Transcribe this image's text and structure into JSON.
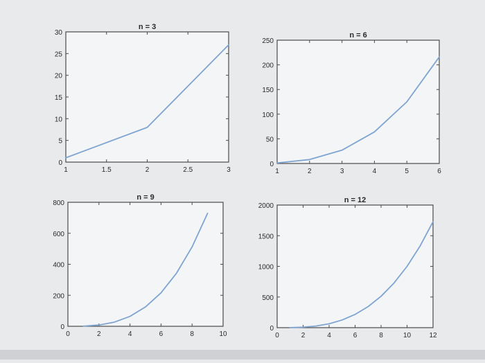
{
  "chart_data": [
    {
      "type": "line",
      "title": "n = 3",
      "xlabel": "",
      "ylabel": "",
      "xlim": [
        1,
        3
      ],
      "ylim": [
        0,
        30
      ],
      "xticks": [
        "1",
        "1.5",
        "2",
        "2.5",
        "3"
      ],
      "yticks": [
        "0",
        "5",
        "10",
        "15",
        "20",
        "25",
        "30"
      ],
      "grid": false,
      "series": [
        {
          "x": [
            1,
            2,
            3
          ],
          "y": [
            1,
            8,
            27
          ]
        }
      ]
    },
    {
      "type": "line",
      "title": "n = 6",
      "xlabel": "",
      "ylabel": "",
      "xlim": [
        1,
        6
      ],
      "ylim": [
        0,
        250
      ],
      "xticks": [
        "1",
        "2",
        "3",
        "4",
        "5",
        "6"
      ],
      "yticks": [
        "0",
        "50",
        "100",
        "150",
        "200",
        "250"
      ],
      "grid": false,
      "series": [
        {
          "x": [
            1,
            2,
            3,
            4,
            5,
            6
          ],
          "y": [
            1,
            8,
            27,
            64,
            125,
            216
          ]
        }
      ]
    },
    {
      "type": "line",
      "title": "n = 9",
      "xlabel": "",
      "ylabel": "",
      "xlim": [
        0,
        10
      ],
      "ylim": [
        0,
        800
      ],
      "xticks": [
        "0",
        "2",
        "4",
        "6",
        "8",
        "10"
      ],
      "yticks": [
        "0",
        "200",
        "400",
        "600",
        "800"
      ],
      "grid": false,
      "series": [
        {
          "x": [
            1,
            2,
            3,
            4,
            5,
            6,
            7,
            8,
            9
          ],
          "y": [
            1,
            8,
            27,
            64,
            125,
            216,
            343,
            512,
            729
          ]
        }
      ]
    },
    {
      "type": "line",
      "title": "n = 12",
      "xlabel": "",
      "ylabel": "",
      "xlim": [
        0,
        12
      ],
      "ylim": [
        0,
        2000
      ],
      "xticks": [
        "0",
        "2",
        "4",
        "6",
        "8",
        "10",
        "12"
      ],
      "yticks": [
        "0",
        "500",
        "1000",
        "1500",
        "2000"
      ],
      "grid": false,
      "series": [
        {
          "x": [
            1,
            2,
            3,
            4,
            5,
            6,
            7,
            8,
            9,
            10,
            11,
            12
          ],
          "y": [
            1,
            8,
            27,
            64,
            125,
            216,
            343,
            512,
            729,
            1000,
            1331,
            1728
          ]
        }
      ]
    }
  ],
  "colors": {
    "line": "#7ea4d2",
    "axes": "#4a4a4a",
    "text": "#2a2a2a",
    "plot_bg": "#f4f5f6"
  }
}
